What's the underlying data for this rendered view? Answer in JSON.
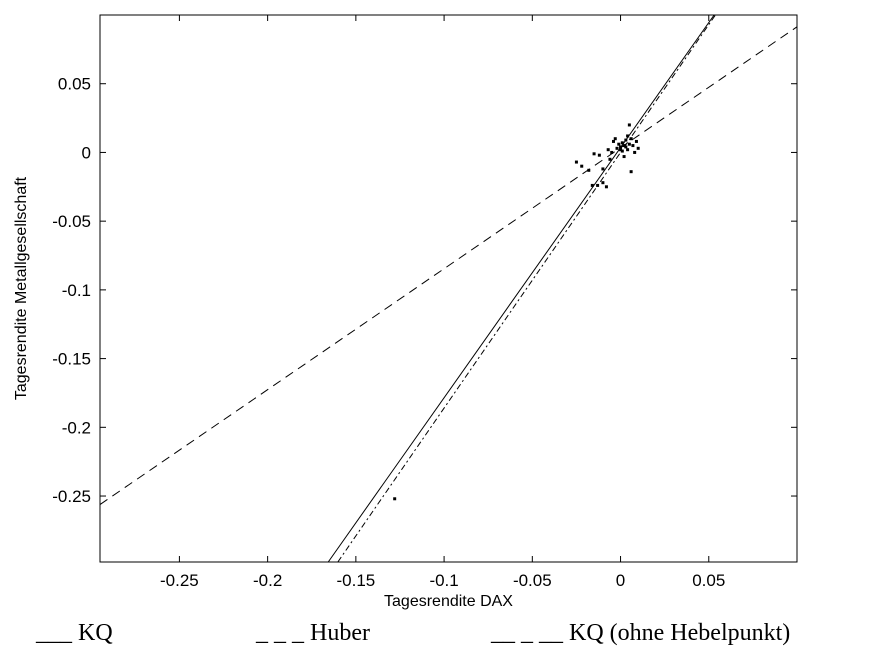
{
  "chart_data": {
    "type": "scatter",
    "title": "",
    "xlabel": "Tagesrendite DAX",
    "ylabel": "Tagesrendite Metallgesellschaft",
    "xlim": [
      -0.295,
      0.1
    ],
    "ylim": [
      -0.298,
      0.1
    ],
    "xticks": [
      -0.25,
      -0.2,
      -0.15,
      -0.1,
      -0.05,
      0,
      0.05
    ],
    "xtick_labels": [
      "-0.25",
      "-0.2",
      "-0.15",
      "-0.1",
      "-0.05",
      "0",
      "0.05"
    ],
    "yticks": [
      0.05,
      0,
      -0.05,
      -0.1,
      -0.15,
      -0.2,
      -0.25
    ],
    "ytick_labels": [
      "0.05",
      "0",
      "-0.05",
      "-0.1",
      "-0.15",
      "-0.2",
      "-0.25"
    ],
    "grid": false,
    "points": [
      [
        -0.128,
        -0.252
      ],
      [
        -0.025,
        -0.007
      ],
      [
        -0.022,
        -0.01
      ],
      [
        -0.018,
        -0.013
      ],
      [
        -0.015,
        -0.001
      ],
      [
        -0.012,
        -0.002
      ],
      [
        -0.01,
        -0.012
      ],
      [
        -0.016,
        -0.024
      ],
      [
        -0.013,
        -0.024
      ],
      [
        -0.01,
        -0.022
      ],
      [
        -0.008,
        -0.025
      ],
      [
        -0.006,
        -0.005
      ],
      [
        -0.004,
        0.008
      ],
      [
        -0.003,
        0.01
      ],
      [
        -0.002,
        0.003
      ],
      [
        -0.001,
        0.006
      ],
      [
        0.0,
        0.002
      ],
      [
        0.0,
        0.004
      ],
      [
        0.001,
        0.007
      ],
      [
        0.001,
        0.001
      ],
      [
        0.002,
        0.005
      ],
      [
        0.003,
        0.009
      ],
      [
        0.003,
        0.004
      ],
      [
        0.004,
        0.012
      ],
      [
        0.004,
        0.002
      ],
      [
        0.005,
        0.02
      ],
      [
        0.005,
        0.006
      ],
      [
        0.006,
        0.01
      ],
      [
        0.006,
        -0.014
      ],
      [
        0.007,
        0.005
      ],
      [
        0.008,
        0.0
      ],
      [
        0.009,
        0.008
      ],
      [
        0.01,
        0.003
      ],
      [
        -0.007,
        0.002
      ],
      [
        -0.005,
        0.0
      ],
      [
        0.002,
        -0.003
      ]
    ],
    "series": [
      {
        "name": "KQ",
        "style": "solid",
        "slope": 1.82,
        "intercept": 0.0035
      },
      {
        "name": "Huber",
        "style": "dashed",
        "slope": 0.88,
        "intercept": 0.0034
      },
      {
        "name": "KQ (ohne Hebelpunkt)",
        "style": "dash-dot",
        "slope": 1.86,
        "intercept": 0.0
      }
    ]
  },
  "legend": {
    "kq": "___ KQ",
    "huber": "_ _ _ Huber",
    "kq_ohne": "__ _ __ KQ (ohne Hebelpunkt)"
  },
  "colors": {
    "ink": "#000000",
    "background": "#ffffff"
  }
}
